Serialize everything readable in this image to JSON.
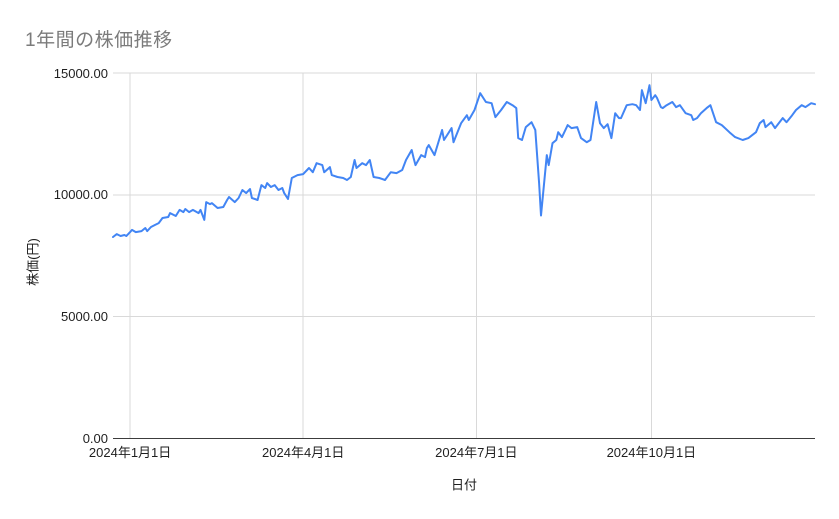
{
  "page": {
    "background_color": "#ffffff"
  },
  "chart": {
    "title": "1年間の株価推移",
    "title_color": "#7b7b7b",
    "x_axis_title": "日付",
    "y_axis_title": "株価(円)",
    "line_color": "#4285f4",
    "grid_color": "#d9d9d9",
    "axis_line_color": "#3c3c3c",
    "tick_label_color": "#1f1f1f"
  },
  "chart_data": {
    "type": "line",
    "title": "1年間の株価推移",
    "xlabel": "日付",
    "ylabel": "株価(円)",
    "ylim": [
      0,
      15000
    ],
    "grid": true,
    "legend": "none",
    "y_ticks": [
      {
        "value": 0,
        "label": "0.00"
      },
      {
        "value": 5000,
        "label": "5000.00"
      },
      {
        "value": 10000,
        "label": "10000.00"
      },
      {
        "value": 15000,
        "label": "15000.00"
      }
    ],
    "x_domain_days": [
      0,
      369
    ],
    "start_date": "2023-12-23",
    "x_ticks": [
      {
        "day": 9,
        "label": "2024年1月1日"
      },
      {
        "day": 100,
        "label": "2024年4月1日"
      },
      {
        "day": 191,
        "label": "2024年7月1日"
      },
      {
        "day": 283,
        "label": "2024年10月1日"
      }
    ],
    "series": [
      {
        "name": "株価(円)",
        "color": "#4285f4",
        "x_unit": "days_since_start_date",
        "points": [
          [
            0,
            8270
          ],
          [
            2,
            8390
          ],
          [
            4,
            8310
          ],
          [
            6,
            8350
          ],
          [
            7,
            8310
          ],
          [
            9,
            8470
          ],
          [
            10,
            8560
          ],
          [
            12,
            8470
          ],
          [
            15,
            8510
          ],
          [
            17,
            8640
          ],
          [
            18,
            8510
          ],
          [
            20,
            8680
          ],
          [
            22,
            8760
          ],
          [
            24,
            8840
          ],
          [
            26,
            9050
          ],
          [
            29,
            9090
          ],
          [
            30,
            9250
          ],
          [
            33,
            9130
          ],
          [
            35,
            9380
          ],
          [
            37,
            9290
          ],
          [
            38,
            9420
          ],
          [
            40,
            9290
          ],
          [
            42,
            9380
          ],
          [
            45,
            9250
          ],
          [
            46,
            9380
          ],
          [
            48,
            8970
          ],
          [
            49,
            9700
          ],
          [
            51,
            9620
          ],
          [
            52,
            9660
          ],
          [
            55,
            9460
          ],
          [
            58,
            9500
          ],
          [
            60,
            9790
          ],
          [
            61,
            9910
          ],
          [
            64,
            9700
          ],
          [
            66,
            9870
          ],
          [
            68,
            10200
          ],
          [
            70,
            10070
          ],
          [
            72,
            10240
          ],
          [
            73,
            9870
          ],
          [
            76,
            9790
          ],
          [
            78,
            10400
          ],
          [
            80,
            10280
          ],
          [
            81,
            10480
          ],
          [
            83,
            10320
          ],
          [
            85,
            10400
          ],
          [
            87,
            10200
          ],
          [
            89,
            10280
          ],
          [
            90,
            10070
          ],
          [
            92,
            9830
          ],
          [
            94,
            10690
          ],
          [
            97,
            10810
          ],
          [
            100,
            10850
          ],
          [
            103,
            11100
          ],
          [
            105,
            10930
          ],
          [
            107,
            11300
          ],
          [
            110,
            11220
          ],
          [
            111,
            10930
          ],
          [
            114,
            11140
          ],
          [
            115,
            10810
          ],
          [
            118,
            10730
          ],
          [
            121,
            10690
          ],
          [
            123,
            10610
          ],
          [
            125,
            10730
          ],
          [
            127,
            11430
          ],
          [
            128,
            11100
          ],
          [
            131,
            11300
          ],
          [
            133,
            11220
          ],
          [
            135,
            11430
          ],
          [
            137,
            10730
          ],
          [
            140,
            10690
          ],
          [
            143,
            10610
          ],
          [
            146,
            10930
          ],
          [
            149,
            10890
          ],
          [
            152,
            11020
          ],
          [
            154,
            11430
          ],
          [
            157,
            11840
          ],
          [
            158,
            11510
          ],
          [
            159,
            11220
          ],
          [
            162,
            11630
          ],
          [
            164,
            11550
          ],
          [
            165,
            11920
          ],
          [
            166,
            12040
          ],
          [
            169,
            11630
          ],
          [
            173,
            12660
          ],
          [
            174,
            12250
          ],
          [
            178,
            12740
          ],
          [
            179,
            12160
          ],
          [
            183,
            12940
          ],
          [
            186,
            13270
          ],
          [
            187,
            13070
          ],
          [
            190,
            13480
          ],
          [
            193,
            14170
          ],
          [
            196,
            13810
          ],
          [
            199,
            13760
          ],
          [
            201,
            13190
          ],
          [
            204,
            13480
          ],
          [
            207,
            13810
          ],
          [
            210,
            13680
          ],
          [
            212,
            13560
          ],
          [
            213,
            12330
          ],
          [
            215,
            12250
          ],
          [
            217,
            12780
          ],
          [
            220,
            12980
          ],
          [
            222,
            12660
          ],
          [
            224,
            10480
          ],
          [
            225,
            9150
          ],
          [
            228,
            11630
          ],
          [
            229,
            11220
          ],
          [
            231,
            12120
          ],
          [
            233,
            12250
          ],
          [
            234,
            12570
          ],
          [
            236,
            12370
          ],
          [
            239,
            12860
          ],
          [
            241,
            12740
          ],
          [
            244,
            12780
          ],
          [
            246,
            12330
          ],
          [
            249,
            12160
          ],
          [
            251,
            12250
          ],
          [
            254,
            13810
          ],
          [
            256,
            12940
          ],
          [
            258,
            12740
          ],
          [
            260,
            12900
          ],
          [
            262,
            12330
          ],
          [
            264,
            13350
          ],
          [
            266,
            13150
          ],
          [
            267,
            13150
          ],
          [
            270,
            13680
          ],
          [
            273,
            13720
          ],
          [
            275,
            13680
          ],
          [
            277,
            13480
          ],
          [
            278,
            14300
          ],
          [
            280,
            13760
          ],
          [
            282,
            14500
          ],
          [
            283,
            13890
          ],
          [
            285,
            14090
          ],
          [
            286,
            13970
          ],
          [
            288,
            13600
          ],
          [
            289,
            13560
          ],
          [
            291,
            13680
          ],
          [
            294,
            13810
          ],
          [
            296,
            13600
          ],
          [
            298,
            13680
          ],
          [
            301,
            13350
          ],
          [
            304,
            13270
          ],
          [
            305,
            13070
          ],
          [
            307,
            13150
          ],
          [
            309,
            13350
          ],
          [
            312,
            13560
          ],
          [
            314,
            13680
          ],
          [
            317,
            12980
          ],
          [
            320,
            12860
          ],
          [
            324,
            12570
          ],
          [
            327,
            12370
          ],
          [
            331,
            12250
          ],
          [
            334,
            12330
          ],
          [
            338,
            12570
          ],
          [
            340,
            12940
          ],
          [
            342,
            13070
          ],
          [
            343,
            12780
          ],
          [
            346,
            12980
          ],
          [
            348,
            12740
          ],
          [
            352,
            13150
          ],
          [
            354,
            12980
          ],
          [
            357,
            13270
          ],
          [
            359,
            13480
          ],
          [
            362,
            13680
          ],
          [
            364,
            13600
          ],
          [
            367,
            13760
          ],
          [
            369,
            13720
          ]
        ]
      }
    ]
  }
}
